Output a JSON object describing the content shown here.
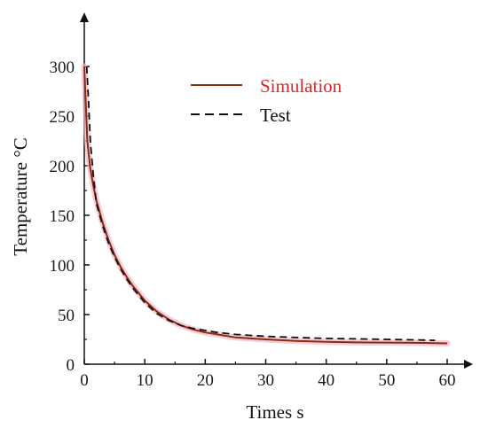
{
  "chart_data": {
    "type": "line",
    "title": "",
    "xlabel": "Times s",
    "ylabel": "Temperature °C",
    "xlim": [
      0,
      60
    ],
    "ylim": [
      0,
      300
    ],
    "x_ticks": [
      0,
      10,
      20,
      30,
      40,
      50,
      60
    ],
    "y_ticks": [
      0,
      50,
      100,
      150,
      200,
      250,
      300
    ],
    "x_tick_labels": [
      "0",
      "10",
      "20",
      "30",
      "40",
      "50",
      "60"
    ],
    "y_tick_labels": [
      "0",
      "50",
      "100",
      "150",
      "200",
      "250",
      "300"
    ],
    "grid": false,
    "legend_position": "top-center",
    "series": [
      {
        "name": "Simulation",
        "style": "solid",
        "color": "#8b2a12",
        "glow_color": "#f2b8c6",
        "label_color": "#d42a2a",
        "x": [
          0,
          0.5,
          1,
          1.5,
          2,
          3,
          4,
          5,
          6,
          7,
          8,
          10,
          12,
          14,
          16,
          18,
          20,
          22,
          25,
          30,
          35,
          40,
          45,
          50,
          55,
          60
        ],
        "y": [
          300,
          225,
          197,
          180,
          165,
          143,
          125,
          110,
          98,
          88,
          79,
          64,
          53,
          45,
          39,
          35,
          32,
          30,
          27,
          25,
          23.5,
          22.5,
          22,
          21.8,
          21.5,
          21
        ]
      },
      {
        "name": "Test",
        "style": "dashed",
        "color": "#111111",
        "label_color": "#111111",
        "x": [
          0.4,
          0.7,
          1,
          1.5,
          2,
          3,
          4,
          5,
          6,
          7,
          8,
          10,
          12,
          14,
          16,
          18,
          20,
          22,
          25,
          30,
          35,
          40,
          45,
          50,
          55,
          58
        ],
        "y": [
          300,
          265,
          225,
          190,
          162,
          140,
          122,
          108,
          96,
          86,
          77,
          62,
          51,
          44,
          39,
          36,
          34,
          32,
          30,
          28,
          27,
          26,
          25.5,
          25,
          24.5,
          24
        ]
      }
    ]
  }
}
